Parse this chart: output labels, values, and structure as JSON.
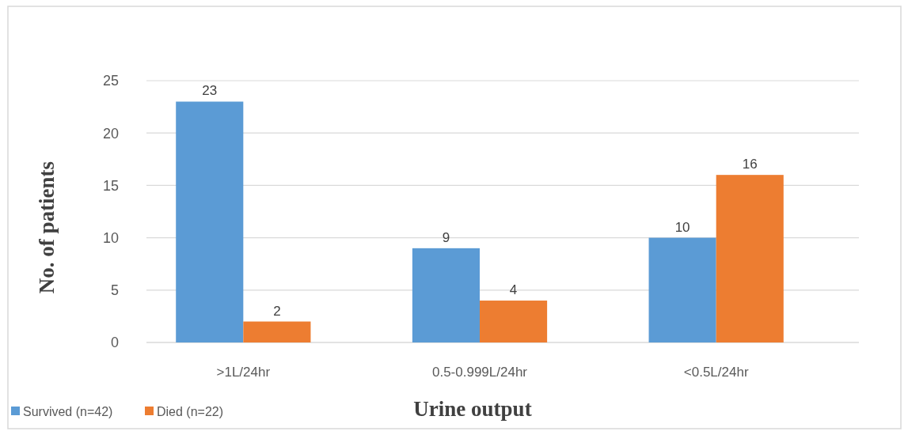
{
  "chart_data": {
    "type": "bar",
    "xlabel": "Urine output",
    "ylabel": "No. of patients",
    "categories": [
      ">1L/24hr",
      "0.5-0.999L/24hr",
      "<0.5L/24hr"
    ],
    "series": [
      {
        "name": "Survived (n=42)",
        "color": "#5b9bd5",
        "values": [
          23,
          9,
          10
        ]
      },
      {
        "name": "Died (n=22)",
        "color": "#ed7d31",
        "values": [
          2,
          4,
          16
        ]
      }
    ],
    "ylim": [
      0,
      25
    ],
    "yticks": [
      0,
      5,
      10,
      15,
      20,
      25
    ],
    "grid": "y",
    "legend": "bottom",
    "data_labels": true
  }
}
